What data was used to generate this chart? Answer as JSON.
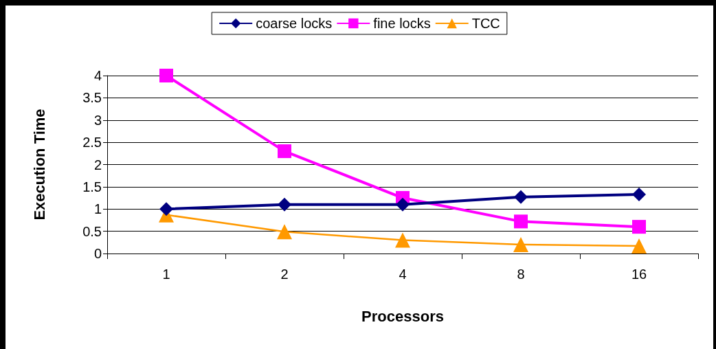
{
  "chart_data": {
    "type": "line",
    "xlabel": "Processors",
    "ylabel": "Execution Time",
    "categories": [
      "1",
      "2",
      "4",
      "8",
      "16"
    ],
    "series": [
      {
        "name": "coarse locks",
        "color": "#000080",
        "marker": "diamond",
        "values": [
          1.0,
          1.1,
          1.1,
          1.27,
          1.33
        ]
      },
      {
        "name": "fine locks",
        "color": "#ff00ff",
        "marker": "square",
        "values": [
          4.0,
          2.3,
          1.25,
          0.72,
          0.6
        ]
      },
      {
        "name": "TCC",
        "color": "#ff9900",
        "marker": "triangle",
        "values": [
          0.87,
          0.49,
          0.3,
          0.2,
          0.17
        ]
      }
    ],
    "ylim": [
      0,
      4
    ],
    "yticks": [
      0,
      0.5,
      1,
      1.5,
      2,
      2.5,
      3,
      3.5,
      4
    ],
    "grid": "y",
    "legend": "top",
    "line_style": "solid"
  }
}
